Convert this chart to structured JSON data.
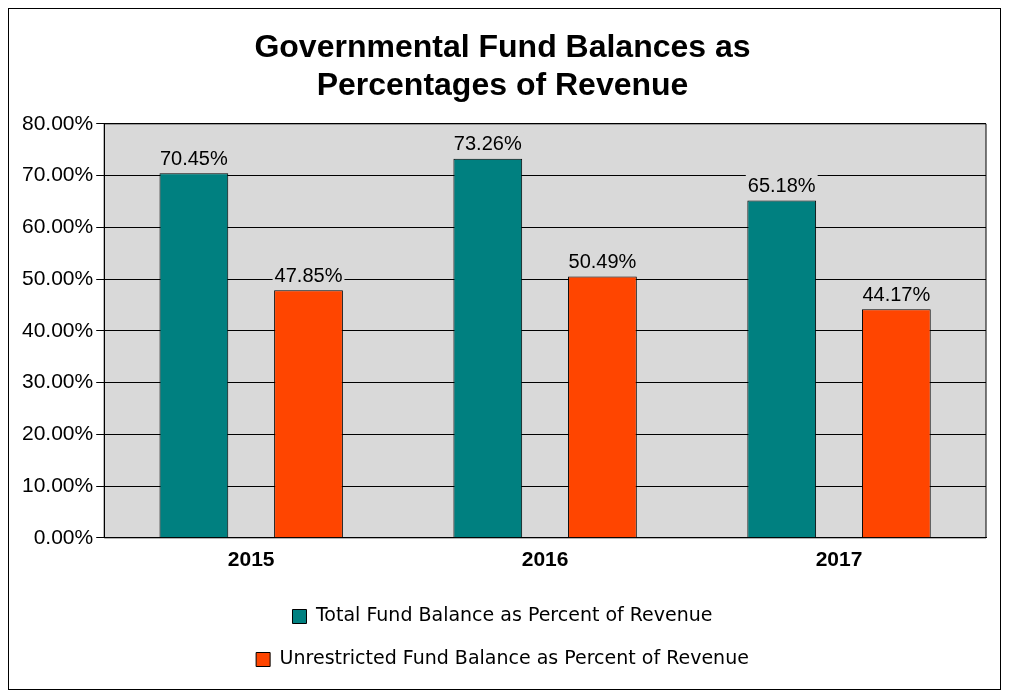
{
  "chart_data": {
    "type": "bar",
    "title": "Governmental Fund Balances as Percentages of Revenue",
    "categories": [
      "2015",
      "2016",
      "2017"
    ],
    "series": [
      {
        "name": "Total Fund Balance as Percent of Revenue",
        "color": "#008080",
        "values": [
          70.45,
          73.26,
          65.18
        ],
        "value_labels": [
          "70.45%",
          "73.26%",
          "65.18%"
        ]
      },
      {
        "name": "Unrestricted Fund Balance as Percent of Revenue",
        "color": "#ff4500",
        "values": [
          47.85,
          50.49,
          44.17
        ],
        "value_labels": [
          "47.85%",
          "50.49%",
          "44.17%"
        ]
      }
    ],
    "ylim": [
      0,
      80
    ],
    "yticks": [
      {
        "value": 0,
        "label": "0.00%"
      },
      {
        "value": 10,
        "label": "10.00%"
      },
      {
        "value": 20,
        "label": "20.00%"
      },
      {
        "value": 30,
        "label": "30.00%"
      },
      {
        "value": 40,
        "label": "40.00%"
      },
      {
        "value": 50,
        "label": "50.00%"
      },
      {
        "value": 60,
        "label": "60.00%"
      },
      {
        "value": 70,
        "label": "70.00%"
      },
      {
        "value": 80,
        "label": "80.00%"
      }
    ],
    "grid": "y",
    "legend": "bottom"
  }
}
